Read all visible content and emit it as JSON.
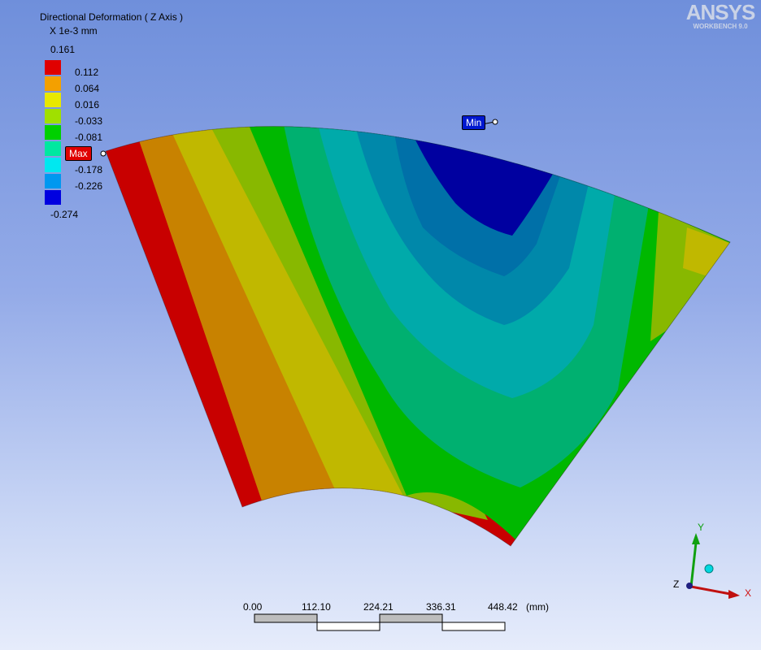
{
  "legend": {
    "title": "Directional Deformation ( Z Axis )",
    "unit": "X 1e-3 mm",
    "max_value": "0.161",
    "min_value": "-0.274",
    "bands": [
      {
        "label": "0.112",
        "color": "#e00000"
      },
      {
        "label": "0.064",
        "color": "#f4a000"
      },
      {
        "label": "0.016",
        "color": "#e8e800"
      },
      {
        "label": "-0.033",
        "color": "#a0e000"
      },
      {
        "label": "-0.081",
        "color": "#00d000"
      },
      {
        "label": "",
        "color": "#00e8a0"
      },
      {
        "label": "-0.178",
        "color": "#00e8f0"
      },
      {
        "label": "-0.226",
        "color": "#0098f0"
      },
      {
        "label": "",
        "color": "#0000e0"
      }
    ]
  },
  "probes": {
    "max_label": "Max",
    "min_label": "Min"
  },
  "logo": {
    "name": "ANSYS",
    "subtitle": "WORKBENCH 9.0"
  },
  "scale_bar": {
    "ticks": [
      "0.00",
      "112.10",
      "224.21",
      "336.31",
      "448.42"
    ],
    "unit": "(mm)"
  },
  "triad": {
    "x_label": "X",
    "y_label": "Y",
    "z_label": "Z"
  },
  "contour_colors": [
    "#c80000",
    "#c88200",
    "#c0b800",
    "#88b800",
    "#00b800",
    "#00b070",
    "#00aaaa",
    "#0088aa",
    "#0070a8",
    "#0000a0"
  ]
}
